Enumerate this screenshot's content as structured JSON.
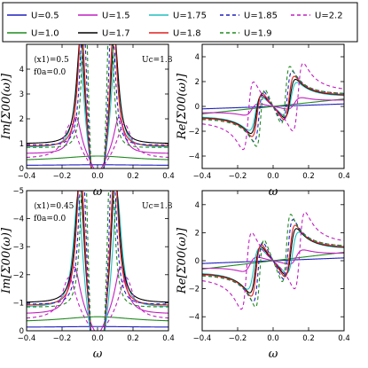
{
  "legend": {
    "entries": [
      {
        "label": "U=0.5",
        "color": "#1f1fbf",
        "dash": false
      },
      {
        "label": "U=1.5",
        "color": "#c21fc2",
        "dash": false
      },
      {
        "label": "U=1.75",
        "color": "#1fbfbf",
        "dash": false
      },
      {
        "label": "U=1.85",
        "color": "#1f1fbf",
        "dash": true
      },
      {
        "label": "U=2.2",
        "color": "#c21fc2",
        "dash": true
      },
      {
        "label": "U=1.0",
        "color": "#1f8a1f",
        "dash": false
      },
      {
        "label": "U=1.7",
        "color": "#000000",
        "dash": false
      },
      {
        "label": "U=1.8",
        "color": "#e01f1f",
        "dash": false
      },
      {
        "label": "U=1.9",
        "color": "#1f8a1f",
        "dash": true
      }
    ]
  },
  "chart_data": [
    {
      "type": "line",
      "panel": "top-left",
      "xlabel": "ω",
      "ylabel": "Im[Σ00(ω)]",
      "xlim": [
        -0.4,
        0.4
      ],
      "ylim": [
        0,
        5
      ],
      "xticks": [
        "−0.4",
        "−0.2",
        "0.0",
        "0.2",
        "0.4"
      ],
      "yticks": [
        "0",
        "1",
        "2",
        "3",
        "4"
      ],
      "annotations": [
        "⟨x1⟩=0.5",
        "f0a=0.0",
        "Uc=1.8"
      ],
      "series": [
        {
          "name": "U=0.5",
          "x": [
            -0.4,
            -0.2,
            0,
            0.2,
            0.4
          ],
          "y": [
            0.1,
            0.12,
            0.15,
            0.12,
            0.1
          ]
        },
        {
          "name": "U=1.0",
          "x": [
            -0.4,
            -0.2,
            -0.1,
            0,
            0.1,
            0.2,
            0.4
          ],
          "y": [
            0.35,
            0.45,
            0.5,
            0.5,
            0.5,
            0.45,
            0.35
          ]
        },
        {
          "name": "U=1.5",
          "x": [
            -0.4,
            -0.2,
            -0.12,
            -0.05,
            0,
            0.05,
            0.12,
            0.2,
            0.4
          ],
          "y": [
            0.4,
            0.8,
            2.0,
            1.0,
            0.9,
            1.0,
            2.0,
            0.8,
            0.4
          ]
        },
        {
          "name": "U=1.7",
          "x": [
            -0.4,
            -0.2,
            -0.1,
            -0.05,
            0,
            0.05,
            0.1,
            0.2,
            0.4
          ],
          "y": [
            0.5,
            1.5,
            4.5,
            1.2,
            1.1,
            1.2,
            4.5,
            1.5,
            0.5
          ]
        },
        {
          "name": "U=1.8",
          "x": [
            -0.4,
            -0.2,
            -0.08,
            -0.02,
            0,
            0.02,
            0.08,
            0.2,
            0.4
          ],
          "y": [
            0.5,
            1.8,
            5.0,
            0.5,
            0.3,
            0.5,
            5.0,
            1.8,
            0.5
          ]
        }
      ]
    },
    {
      "type": "line",
      "panel": "top-right",
      "xlabel": "ω",
      "ylabel": "Re[Σ00(ω)]",
      "xlim": [
        -0.4,
        0.4
      ],
      "ylim": [
        -5,
        5
      ],
      "xticks": [
        "−0.4",
        "−0.2",
        "0.0",
        "0.2",
        "0.4"
      ],
      "yticks": [
        "−4",
        "−2",
        "0",
        "2",
        "4"
      ],
      "series": [
        {
          "name": "U=0.5",
          "x": [
            -0.4,
            0,
            0.4
          ],
          "y": [
            -0.2,
            0,
            0.2
          ]
        },
        {
          "name": "U=1.0",
          "x": [
            -0.4,
            0,
            0.4
          ],
          "y": [
            -0.6,
            0,
            0.6
          ]
        },
        {
          "name": "U=1.7",
          "x": [
            -0.4,
            -0.1,
            0,
            0.1,
            0.4
          ],
          "y": [
            -1.5,
            -3.0,
            0,
            3.0,
            1.5
          ]
        }
      ]
    },
    {
      "type": "line",
      "panel": "bottom-left",
      "xlabel": "ω",
      "ylabel": "Im[Σ00(ω)]",
      "xlim": [
        -0.4,
        0.4
      ],
      "ylim": [
        0,
        5
      ],
      "xticks": [
        "−0.4",
        "−0.2",
        "0.0",
        "0.2",
        "0.4"
      ],
      "yticks": [
        "0",
        "−1",
        "−2",
        "−3",
        "−4",
        "−5"
      ],
      "annotations": [
        "⟨x1⟩=0.45",
        "f0a=0.0",
        "Uc=1.8"
      ],
      "series": [
        {
          "name": "U=0.5",
          "x": [
            -0.4,
            0,
            0.4
          ],
          "y": [
            0.1,
            0.15,
            0.1
          ]
        },
        {
          "name": "U=1.0",
          "x": [
            -0.4,
            -0.1,
            0,
            0.1,
            0.4
          ],
          "y": [
            0.3,
            0.5,
            0.45,
            0.5,
            0.3
          ]
        },
        {
          "name": "U=1.7",
          "x": [
            -0.4,
            -0.15,
            -0.05,
            0,
            0.05,
            0.15,
            0.4
          ],
          "y": [
            0.5,
            2.0,
            5.0,
            1.2,
            5.0,
            2.0,
            0.5
          ]
        }
      ]
    },
    {
      "type": "line",
      "panel": "bottom-right",
      "xlabel": "ω",
      "ylabel": "Re[Σ00(ω)]",
      "xlim": [
        -0.4,
        0.4
      ],
      "ylim": [
        -5,
        5
      ],
      "xticks": [
        "−0.4",
        "−0.2",
        "0.0",
        "0.2",
        "0.4"
      ],
      "yticks": [
        "−4",
        "−2",
        "0",
        "2",
        "4"
      ],
      "series": [
        {
          "name": "U=0.5",
          "x": [
            -0.4,
            0,
            0.4
          ],
          "y": [
            -0.2,
            0,
            0.2
          ]
        },
        {
          "name": "U=1.0",
          "x": [
            -0.4,
            0,
            0.4
          ],
          "y": [
            -0.6,
            0,
            0.6
          ]
        },
        {
          "name": "U=1.7",
          "x": [
            -0.4,
            -0.08,
            0,
            0.08,
            0.4
          ],
          "y": [
            -1.8,
            -3.5,
            0,
            3.5,
            1.8
          ]
        }
      ]
    }
  ]
}
